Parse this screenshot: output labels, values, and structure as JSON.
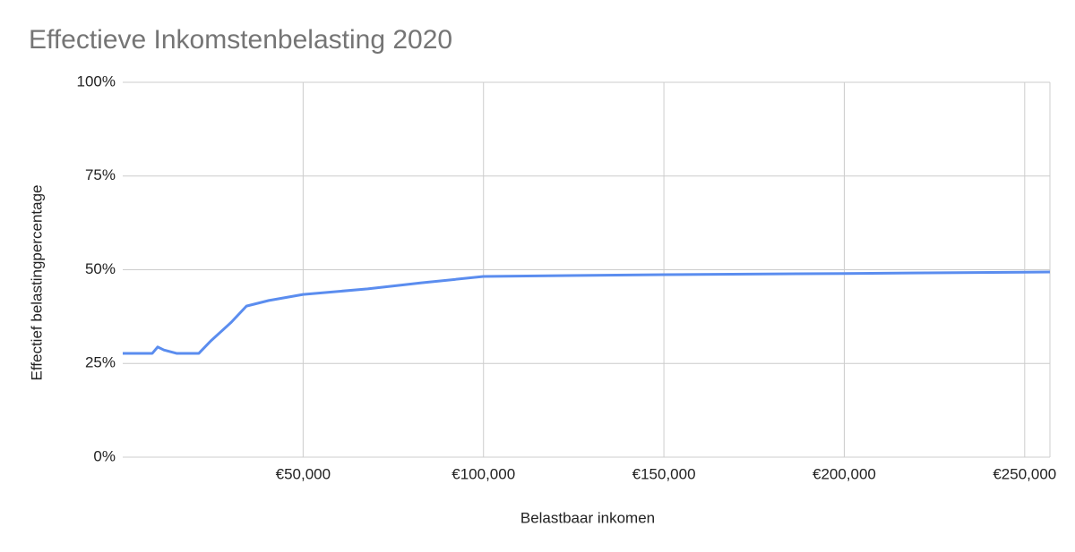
{
  "chart_data": {
    "type": "line",
    "title": "Effectieve Inkomstenbelasting 2020",
    "x_label": "Belastbaar inkomen",
    "y_label": "Effectief belastingpercentage",
    "x": [
      0,
      8200,
      9700,
      11400,
      14900,
      21100,
      24400,
      30100,
      34300,
      40500,
      50000,
      67900,
      82800,
      100000,
      150000,
      200000,
      257000
    ],
    "values": [
      27.7,
      27.7,
      29.4,
      28.6,
      27.7,
      27.7,
      31.0,
      36.0,
      40.3,
      41.8,
      43.4,
      44.9,
      46.5,
      48.2,
      48.7,
      49.0,
      49.4
    ],
    "color": "#5b8def",
    "xlim": [
      0,
      257000
    ],
    "ylim": [
      0,
      100
    ],
    "xticks": [
      {
        "value": 50000,
        "label": "€50,000"
      },
      {
        "value": 100000,
        "label": "€100,000"
      },
      {
        "value": 150000,
        "label": "€150,000"
      },
      {
        "value": 200000,
        "label": "€200,000"
      },
      {
        "value": 250000,
        "label": "€250,000"
      }
    ],
    "yticks": [
      {
        "value": 0,
        "label": "0%"
      },
      {
        "value": 25,
        "label": "25%"
      },
      {
        "value": 50,
        "label": "50%"
      },
      {
        "value": 75,
        "label": "75%"
      },
      {
        "value": 100,
        "label": "100%"
      }
    ],
    "grid": true
  }
}
